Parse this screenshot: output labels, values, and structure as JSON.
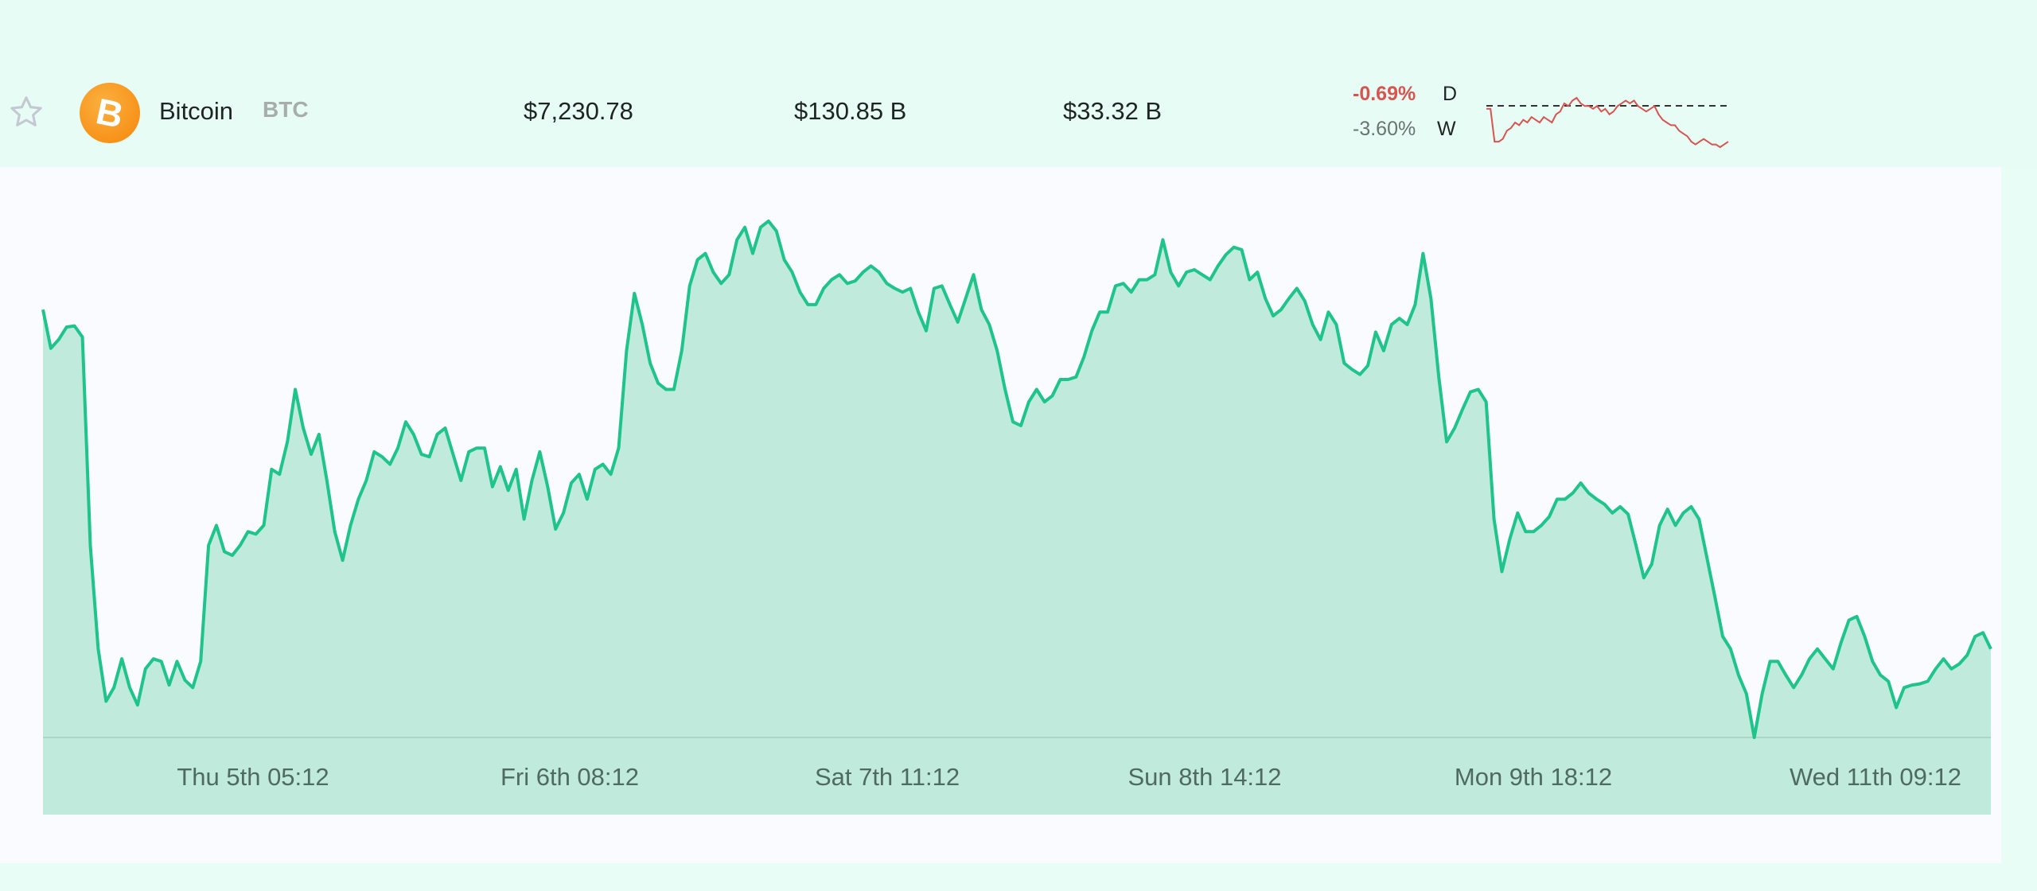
{
  "coin": {
    "favorite_icon": "star-outline-icon",
    "logo_icon": "bitcoin-logo-icon",
    "logo_glyph": "B",
    "name": "Bitcoin",
    "symbol": "BTC",
    "price": "$7,230.78",
    "market_cap": "$130.85 B",
    "volume": "$33.32 B",
    "change_day": "-0.69%",
    "change_day_label": "D",
    "change_week": "-3.60%",
    "change_week_label": "W",
    "colors": {
      "negative": "#d9534f",
      "neutral": "#6b7370",
      "logo": "#f7931a"
    }
  },
  "sparkline": {
    "color": "#d9534f",
    "values": [
      100,
      100,
      88,
      88,
      89,
      92,
      93,
      95,
      94,
      96,
      95,
      97,
      96,
      95,
      97,
      96,
      95,
      98,
      99,
      102,
      101,
      103,
      104,
      102,
      101,
      101,
      100,
      101,
      99,
      100,
      98,
      99,
      101,
      102,
      103,
      102,
      103,
      101,
      100,
      99,
      100,
      101,
      98,
      96,
      95,
      94,
      94,
      92,
      91,
      90,
      88,
      87,
      88,
      89,
      88,
      87,
      87,
      86,
      87,
      88
    ]
  },
  "chart_data": {
    "type": "area",
    "line_color": "#1ec48a",
    "fill_color": "#c0eadc",
    "ylim": [
      7159,
      7615
    ],
    "grid": false,
    "x_tick_labels": [
      "Thu 5th 05:12",
      "Fri 6th 08:12",
      "Sat 7th 11:12",
      "Sun 8th 14:12",
      "Mon 9th 18:12",
      "Wed 11th 09:12"
    ],
    "values": [
      7502,
      7471,
      7478,
      7488,
      7489,
      7480,
      7313,
      7230,
      7188,
      7199,
      7222,
      7199,
      7185,
      7214,
      7222,
      7220,
      7201,
      7220,
      7205,
      7199,
      7220,
      7313,
      7329,
      7308,
      7305,
      7313,
      7324,
      7322,
      7329,
      7374,
      7370,
      7396,
      7438,
      7407,
      7386,
      7402,
      7365,
      7324,
      7301,
      7329,
      7350,
      7365,
      7388,
      7384,
      7378,
      7391,
      7412,
      7402,
      7386,
      7384,
      7402,
      7407,
      7386,
      7365,
      7388,
      7391,
      7391,
      7360,
      7376,
      7357,
      7374,
      7334,
      7365,
      7388,
      7360,
      7326,
      7339,
      7363,
      7370,
      7350,
      7374,
      7378,
      7370,
      7391,
      7469,
      7515,
      7490,
      7459,
      7443,
      7438,
      7438,
      7469,
      7521,
      7542,
      7547,
      7532,
      7523,
      7530,
      7558,
      7568,
      7547,
      7568,
      7573,
      7565,
      7542,
      7532,
      7516,
      7506,
      7506,
      7519,
      7526,
      7530,
      7523,
      7525,
      7532,
      7537,
      7532,
      7523,
      7519,
      7516,
      7519,
      7500,
      7485,
      7519,
      7521,
      7506,
      7492,
      7511,
      7530,
      7502,
      7490,
      7469,
      7438,
      7412,
      7409,
      7428,
      7438,
      7428,
      7433,
      7446,
      7446,
      7448,
      7464,
      7485,
      7500,
      7500,
      7521,
      7523,
      7516,
      7526,
      7526,
      7530,
      7558,
      7532,
      7521,
      7532,
      7534,
      7530,
      7526,
      7537,
      7546,
      7552,
      7550,
      7526,
      7532,
      7511,
      7497,
      7502,
      7511,
      7519,
      7509,
      7490,
      7478,
      7500,
      7490,
      7459,
      7454,
      7450,
      7457,
      7484,
      7469,
      7490,
      7495,
      7490,
      7506,
      7547,
      7511,
      7448,
      7396,
      7407,
      7422,
      7436,
      7438,
      7428,
      7334,
      7292,
      7318,
      7339,
      7324,
      7324,
      7329,
      7336,
      7350,
      7350,
      7355,
      7363,
      7355,
      7350,
      7346,
      7339,
      7344,
      7338,
      7313,
      7287,
      7298,
      7329,
      7342,
      7329,
      7339,
      7344,
      7334,
      7303,
      7272,
      7240,
      7230,
      7209,
      7194,
      7159,
      7194,
      7220,
      7220,
      7209,
      7199,
      7209,
      7222,
      7230,
      7222,
      7214,
      7235,
      7253,
      7256,
      7240,
      7220,
      7209,
      7204,
      7183,
      7199,
      7201,
      7202,
      7204,
      7214,
      7222,
      7214,
      7218,
      7225,
      7240,
      7243,
      7230
    ]
  }
}
